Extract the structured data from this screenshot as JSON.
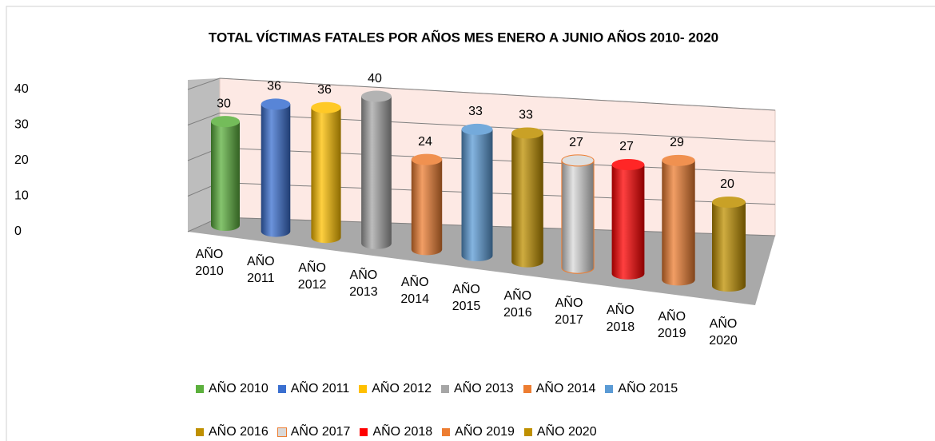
{
  "chart_data": {
    "type": "bar",
    "title": "TOTAL VÍCTIMAS FATALES  POR AÑOS MES ENERO A JUNIO AÑOS 2010- 2020",
    "categories": [
      "AÑO 2010",
      "AÑO 2011",
      "AÑO 2012",
      "AÑO 2013",
      "AÑO 2014",
      "AÑO 2015",
      "AÑO 2016",
      "AÑO 2017",
      "AÑO 2018",
      "AÑO 2019",
      "AÑO 2020"
    ],
    "values": [
      30,
      36,
      36,
      40,
      24,
      33,
      33,
      27,
      27,
      29,
      20
    ],
    "colors": [
      "#5cb03d",
      "#3a6fd0",
      "#ffc000",
      "#a6a6a6",
      "#ed7d31",
      "#5b9bd5",
      "#bf9000",
      "#d9d9d9",
      "#ff0000",
      "#ed7d31",
      "#bf9000"
    ],
    "ylim": [
      0,
      40
    ],
    "yticks": [
      0,
      10,
      20,
      30,
      40
    ],
    "grid": true
  }
}
